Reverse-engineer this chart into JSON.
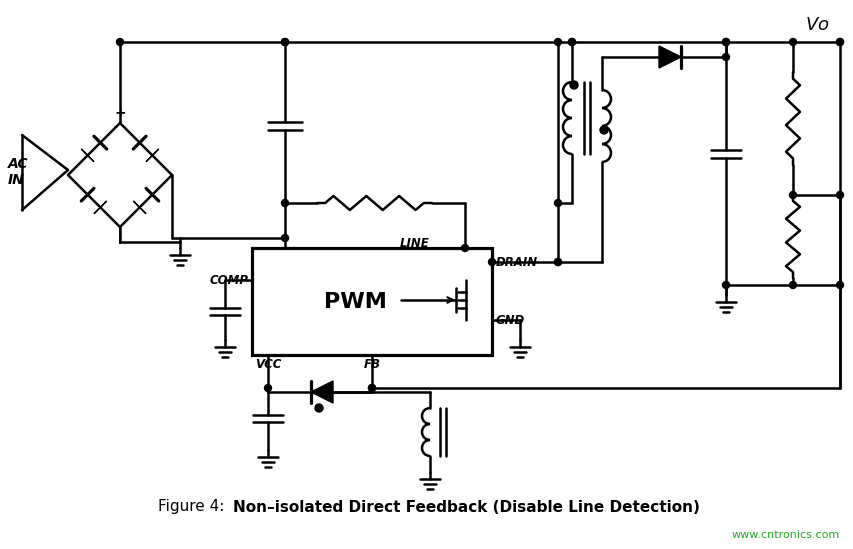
{
  "title_prefix": "Figure 4:  ",
  "title_bold": "Non–isolated Direct Feedback (Disable Line Detection)",
  "watermark": "www.cntronics.com",
  "bg_color": "#ffffff",
  "line_color": "#000000",
  "line_width": 1.8,
  "fig_width": 8.54,
  "fig_height": 5.49,
  "dpi": 100
}
